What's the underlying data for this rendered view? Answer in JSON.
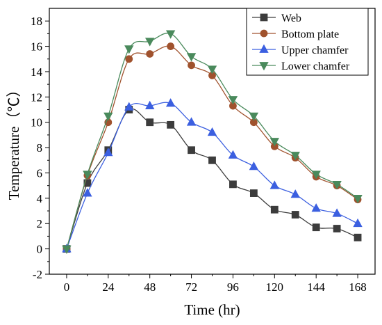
{
  "chart_data": {
    "type": "line",
    "xlabel": "Time (hr)",
    "ylabel": "Temperature（℃）",
    "xlim": [
      -10,
      178
    ],
    "ylim": [
      -2,
      19
    ],
    "xticks": [
      0,
      24,
      48,
      72,
      96,
      120,
      144,
      168
    ],
    "yticks": [
      -2,
      0,
      2,
      4,
      6,
      8,
      10,
      12,
      14,
      16,
      18
    ],
    "grid": false,
    "legend_position": "top-right",
    "series": [
      {
        "name": "Web",
        "color": "#3c3c3c",
        "marker": "square",
        "x": [
          0,
          12,
          24,
          36,
          48,
          60,
          72,
          84,
          96,
          108,
          120,
          132,
          144,
          156,
          168
        ],
        "y": [
          0,
          5.2,
          7.8,
          11.0,
          10.0,
          9.8,
          7.8,
          7.0,
          5.1,
          4.4,
          3.1,
          2.7,
          1.7,
          1.6,
          0.9
        ]
      },
      {
        "name": "Bottom plate",
        "color": "#a0522d",
        "marker": "circle",
        "x": [
          0,
          12,
          24,
          36,
          48,
          60,
          72,
          84,
          96,
          108,
          120,
          132,
          144,
          156,
          168
        ],
        "y": [
          0,
          5.8,
          10.0,
          15.0,
          15.4,
          16.0,
          14.5,
          13.7,
          11.3,
          10.0,
          8.1,
          7.2,
          5.7,
          5.0,
          3.9
        ]
      },
      {
        "name": "Upper chamfer",
        "color": "#3b5fe0",
        "marker": "triangle-up",
        "x": [
          0,
          12,
          24,
          36,
          48,
          60,
          72,
          84,
          96,
          108,
          120,
          132,
          144,
          156,
          168
        ],
        "y": [
          0,
          4.4,
          7.6,
          11.2,
          11.3,
          11.5,
          10.0,
          9.2,
          7.4,
          6.5,
          5.0,
          4.3,
          3.2,
          2.8,
          2.0
        ]
      },
      {
        "name": "Lower chamfer",
        "color": "#4a8a5c",
        "marker": "triangle-down",
        "x": [
          0,
          12,
          24,
          36,
          48,
          60,
          72,
          84,
          96,
          108,
          120,
          132,
          144,
          156,
          168
        ],
        "y": [
          0,
          5.9,
          10.5,
          15.8,
          16.4,
          17.0,
          15.2,
          14.2,
          11.8,
          10.5,
          8.5,
          7.4,
          5.9,
          5.1,
          4.0
        ]
      }
    ]
  }
}
